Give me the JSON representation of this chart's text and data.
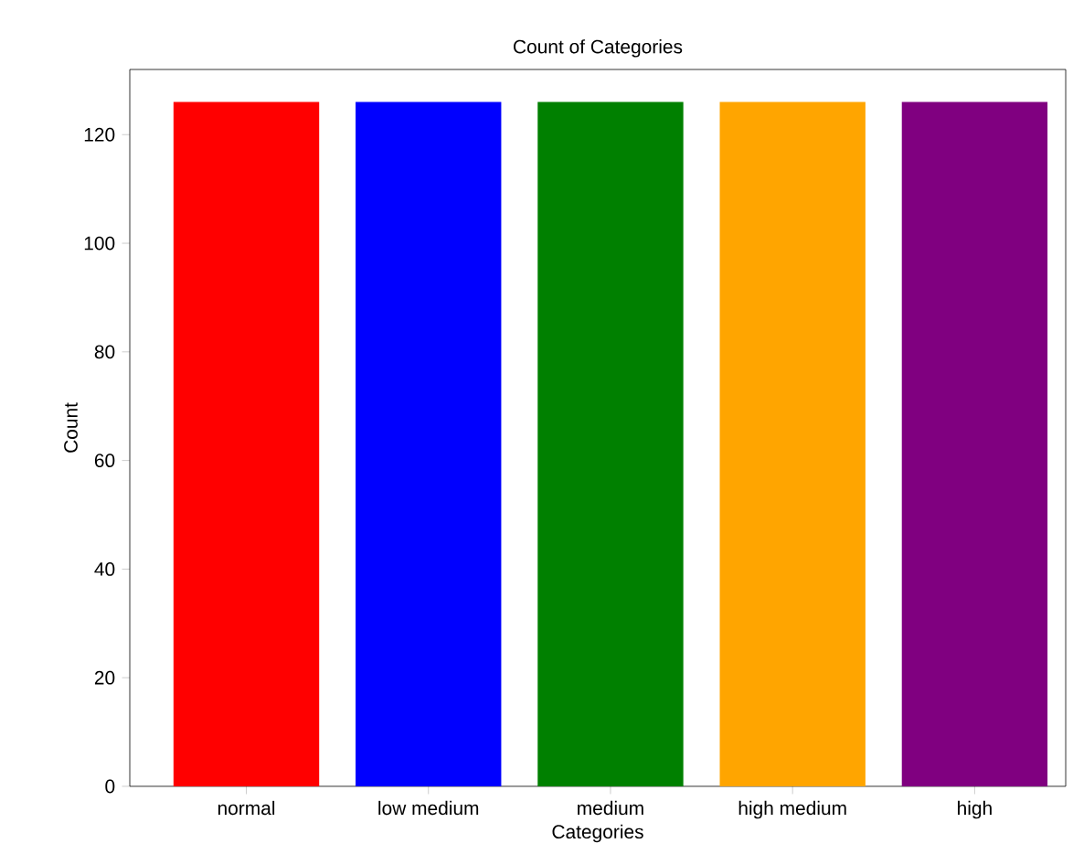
{
  "chart_data": {
    "type": "bar",
    "title": "Count of Categories",
    "xlabel": "Categories",
    "ylabel": "Count",
    "categories": [
      "normal",
      "low medium",
      "medium",
      "high medium",
      "high"
    ],
    "values": [
      126,
      126,
      126,
      126,
      126
    ],
    "colors": [
      "#ff0000",
      "#0000ff",
      "#008000",
      "#ffa500",
      "#800080"
    ],
    "ylim": [
      0,
      132
    ],
    "yticks": [
      0,
      20,
      40,
      60,
      80,
      100,
      120
    ],
    "grid": false
  }
}
